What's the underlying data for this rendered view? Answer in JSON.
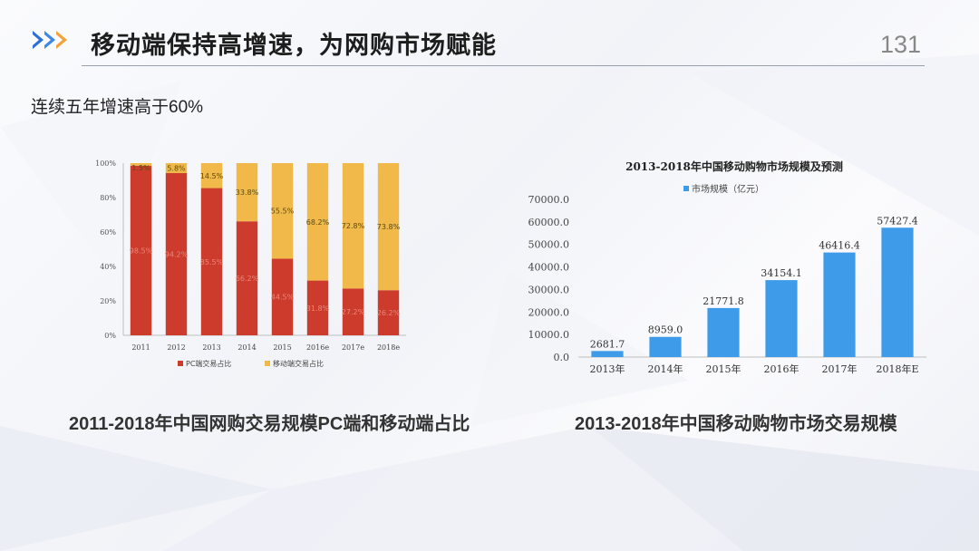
{
  "header": {
    "title": "移动端保持高增速，为网购市场赋能",
    "page_number": "131"
  },
  "subtitle": "连续五年增速高于60%",
  "colors": {
    "pc": "#cc3b2c",
    "mobile": "#f0b94a",
    "bar_blue": "#3d9be9"
  },
  "captions": {
    "left": "2011-2018年中国网购交易规模PC端和移动端占比",
    "right": "2013-2018年中国移动购物市场交易规模"
  },
  "chart_data": [
    {
      "type": "bar",
      "stacked": true,
      "percent": true,
      "categories": [
        "2011",
        "2012",
        "2013",
        "2014",
        "2015",
        "2016e",
        "2017e",
        "2018e"
      ],
      "series": [
        {
          "name": "PC端交易占比",
          "values": [
            98.5,
            94.2,
            85.5,
            66.2,
            44.5,
            31.8,
            27.2,
            26.2
          ]
        },
        {
          "name": "移动端交易占比",
          "values": [
            1.5,
            5.8,
            14.5,
            33.8,
            55.5,
            68.2,
            72.8,
            73.8
          ]
        }
      ],
      "yticks": [
        "0%",
        "20%",
        "40%",
        "60%",
        "80%",
        "100%"
      ],
      "ylim": [
        0,
        100
      ],
      "legend_position": "bottom",
      "grid": false
    },
    {
      "type": "bar",
      "title": "2013-2018年中国移动购物市场规模及预测",
      "categories": [
        "2013年",
        "2014年",
        "2015年",
        "2016年",
        "2017年",
        "2018年E"
      ],
      "series": [
        {
          "name": "市场规模（亿元）",
          "values": [
            2681.7,
            8959.0,
            21771.8,
            34154.1,
            46416.4,
            57427.4
          ]
        }
      ],
      "value_labels": [
        "2681.7",
        "8959.0",
        "21771.8",
        "34154.1",
        "46416.4",
        "57427.4"
      ],
      "yticks": [
        "0.0",
        "10000.0",
        "20000.0",
        "30000.0",
        "40000.0",
        "50000.0",
        "60000.0",
        "70000.0"
      ],
      "ylim": [
        0,
        70000
      ],
      "legend_position": "top",
      "grid": false
    }
  ]
}
